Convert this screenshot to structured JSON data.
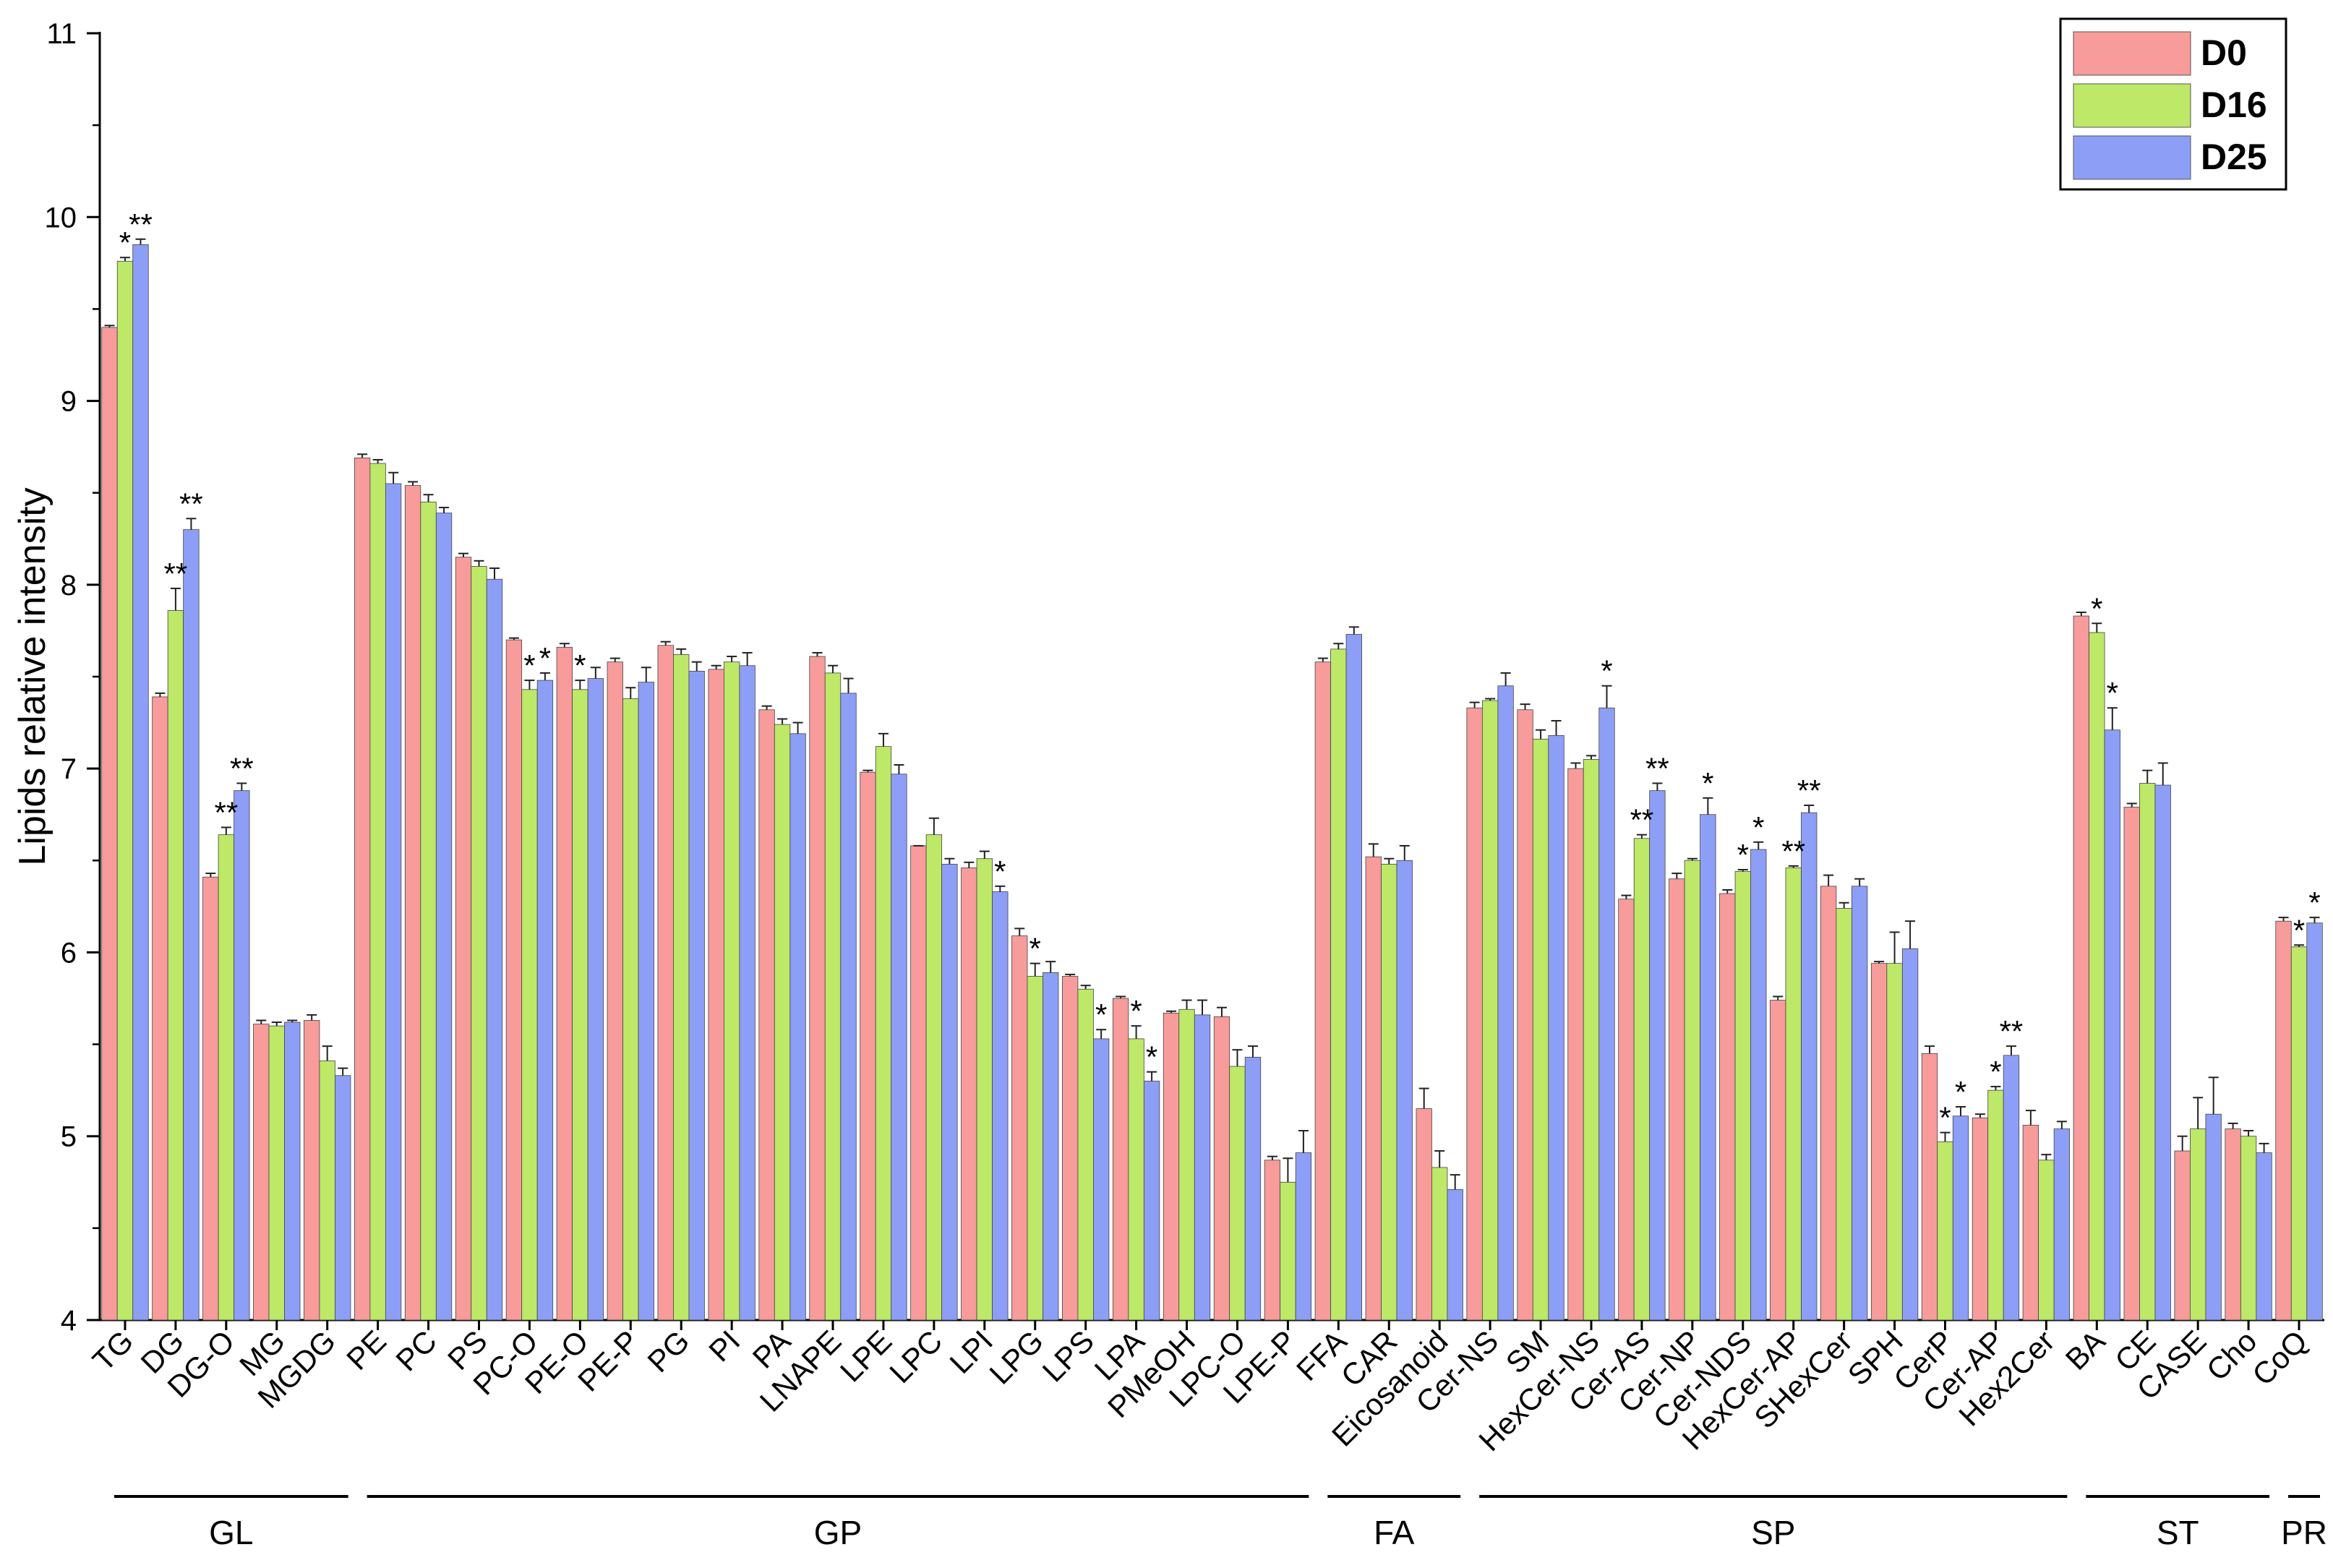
{
  "chart_data": {
    "type": "bar",
    "title": "",
    "xlabel": "",
    "ylabel": "Lipids relative intensity",
    "ylim": [
      4,
      11
    ],
    "yticks": [
      "4",
      "5",
      "6",
      "7",
      "8",
      "9",
      "10",
      "11"
    ],
    "grid": false,
    "legend_position": "top-right",
    "categories": [
      "TG",
      "DG",
      "DG-O",
      "MG",
      "MGDG",
      "PE",
      "PC",
      "PS",
      "PC-O",
      "PE-O",
      "PE-P",
      "PG",
      "PI",
      "PA",
      "LNAPE",
      "LPE",
      "LPC",
      "LPI",
      "LPG",
      "LPS",
      "LPA",
      "PMeOH",
      "LPC-O",
      "LPE-P",
      "FFA",
      "CAR",
      "Eicosanoid",
      "Cer-NS",
      "SM",
      "HexCer-NS",
      "Cer-AS",
      "Cer-NP",
      "Cer-NDS",
      "HexCer-AP",
      "SHexCer",
      "SPH",
      "CerP",
      "Cer-AP",
      "Hex2Cer",
      "BA",
      "CE",
      "CASE",
      "Cho",
      "CoQ"
    ],
    "series": [
      {
        "name": "D0",
        "color": "#F79B9B",
        "values": [
          9.4,
          7.39,
          6.41,
          5.61,
          5.63,
          8.69,
          8.54,
          8.15,
          7.7,
          7.66,
          7.58,
          7.67,
          7.54,
          7.32,
          7.61,
          6.98,
          6.58,
          6.46,
          6.09,
          5.87,
          5.75,
          5.67,
          5.65,
          4.87,
          7.58,
          6.52,
          5.15,
          7.33,
          7.32,
          7.0,
          6.29,
          6.4,
          6.32,
          5.74,
          6.36,
          5.94,
          5.45,
          5.1,
          5.06,
          7.83,
          6.79,
          4.92,
          5.04,
          6.17
        ],
        "errors": [
          0.01,
          0.02,
          0.02,
          0.02,
          0.03,
          0.02,
          0.02,
          0.02,
          0.01,
          0.02,
          0.02,
          0.02,
          0.02,
          0.02,
          0.02,
          0.01,
          0.0,
          0.03,
          0.04,
          0.01,
          0.01,
          0.01,
          0.05,
          0.02,
          0.02,
          0.07,
          0.11,
          0.03,
          0.03,
          0.03,
          0.02,
          0.03,
          0.02,
          0.02,
          0.06,
          0.01,
          0.04,
          0.02,
          0.08,
          0.02,
          0.02,
          0.08,
          0.03,
          0.02
        ]
      },
      {
        "name": "D16",
        "color": "#BDE868",
        "values": [
          9.76,
          7.86,
          6.64,
          5.6,
          5.41,
          8.66,
          8.45,
          8.1,
          7.43,
          7.43,
          7.38,
          7.62,
          7.58,
          7.24,
          7.52,
          7.12,
          6.64,
          6.51,
          5.87,
          5.8,
          5.53,
          5.69,
          5.38,
          4.75,
          7.65,
          6.48,
          4.83,
          7.37,
          7.16,
          7.05,
          6.62,
          6.5,
          6.44,
          6.46,
          6.24,
          5.94,
          4.97,
          5.25,
          4.87,
          7.74,
          6.92,
          5.04,
          5.0,
          6.03
        ],
        "errors": [
          0.02,
          0.12,
          0.04,
          0.02,
          0.08,
          0.02,
          0.04,
          0.03,
          0.05,
          0.05,
          0.06,
          0.03,
          0.03,
          0.03,
          0.04,
          0.07,
          0.09,
          0.04,
          0.07,
          0.02,
          0.07,
          0.05,
          0.09,
          0.13,
          0.03,
          0.03,
          0.09,
          0.01,
          0.05,
          0.02,
          0.02,
          0.01,
          0.01,
          0.01,
          0.03,
          0.17,
          0.05,
          0.02,
          0.03,
          0.05,
          0.07,
          0.17,
          0.03,
          0.01
        ]
      },
      {
        "name": "D25",
        "color": "#8D9EF7",
        "values": [
          9.85,
          8.3,
          6.88,
          5.62,
          5.33,
          8.55,
          8.39,
          8.03,
          7.48,
          7.49,
          7.47,
          7.53,
          7.56,
          7.19,
          7.41,
          6.97,
          6.48,
          6.33,
          5.89,
          5.53,
          5.3,
          5.66,
          5.43,
          4.91,
          7.73,
          6.5,
          4.71,
          7.45,
          7.18,
          7.33,
          6.88,
          6.75,
          6.56,
          6.76,
          6.36,
          6.02,
          5.11,
          5.44,
          5.04,
          7.21,
          6.91,
          5.12,
          4.91,
          6.16
        ],
        "errors": [
          0.03,
          0.06,
          0.04,
          0.01,
          0.04,
          0.06,
          0.03,
          0.06,
          0.04,
          0.06,
          0.08,
          0.05,
          0.07,
          0.06,
          0.08,
          0.05,
          0.03,
          0.03,
          0.06,
          0.05,
          0.05,
          0.08,
          0.06,
          0.12,
          0.04,
          0.08,
          0.08,
          0.07,
          0.08,
          0.12,
          0.04,
          0.09,
          0.04,
          0.04,
          0.04,
          0.15,
          0.05,
          0.05,
          0.04,
          0.12,
          0.12,
          0.2,
          0.05,
          0.03
        ]
      }
    ],
    "significance": [
      {
        "category": "TG",
        "series": "D16",
        "text": "*"
      },
      {
        "category": "TG",
        "series": "D25",
        "text": "**"
      },
      {
        "category": "DG",
        "series": "D16",
        "text": "**"
      },
      {
        "category": "DG",
        "series": "D25",
        "text": "**"
      },
      {
        "category": "DG-O",
        "series": "D16",
        "text": "**"
      },
      {
        "category": "DG-O",
        "series": "D25",
        "text": "**"
      },
      {
        "category": "PC-O",
        "series": "D16",
        "text": "*"
      },
      {
        "category": "PC-O",
        "series": "D25",
        "text": "*"
      },
      {
        "category": "PE-O",
        "series": "D16",
        "text": "*"
      },
      {
        "category": "LPI",
        "series": "D25",
        "text": "*"
      },
      {
        "category": "LPG",
        "series": "D16",
        "text": "*"
      },
      {
        "category": "LPS",
        "series": "D25",
        "text": "*"
      },
      {
        "category": "LPA",
        "series": "D16",
        "text": "*"
      },
      {
        "category": "LPA",
        "series": "D25",
        "text": "*"
      },
      {
        "category": "HexCer-NS",
        "series": "D25",
        "text": "*"
      },
      {
        "category": "Cer-AS",
        "series": "D16",
        "text": "**"
      },
      {
        "category": "Cer-AS",
        "series": "D25",
        "text": "**"
      },
      {
        "category": "Cer-NP",
        "series": "D25",
        "text": "*"
      },
      {
        "category": "Cer-NDS",
        "series": "D16",
        "text": "*"
      },
      {
        "category": "Cer-NDS",
        "series": "D25",
        "text": "*"
      },
      {
        "category": "HexCer-AP",
        "series": "D16",
        "text": "**"
      },
      {
        "category": "HexCer-AP",
        "series": "D25",
        "text": "**"
      },
      {
        "category": "CerP",
        "series": "D16",
        "text": "*"
      },
      {
        "category": "CerP",
        "series": "D25",
        "text": "*"
      },
      {
        "category": "Cer-AP",
        "series": "D16",
        "text": "*"
      },
      {
        "category": "Cer-AP",
        "series": "D25",
        "text": "**"
      },
      {
        "category": "BA",
        "series": "D16",
        "text": "*"
      },
      {
        "category": "BA",
        "series": "D25",
        "text": "*"
      },
      {
        "category": "CoQ",
        "series": "D16",
        "text": "*"
      },
      {
        "category": "CoQ",
        "series": "D25",
        "text": "*"
      }
    ],
    "groups": [
      {
        "label": "GL",
        "start": "TG",
        "end": "MGDG"
      },
      {
        "label": "GP",
        "start": "PE",
        "end": "LPE-P"
      },
      {
        "label": "FA",
        "start": "FFA",
        "end": "Eicosanoid"
      },
      {
        "label": "SP",
        "start": "Cer-NS",
        "end": "Hex2Cer"
      },
      {
        "label": "ST",
        "start": "BA",
        "end": "Cho"
      },
      {
        "label": "PR",
        "start": "CoQ",
        "end": "CoQ"
      }
    ]
  }
}
